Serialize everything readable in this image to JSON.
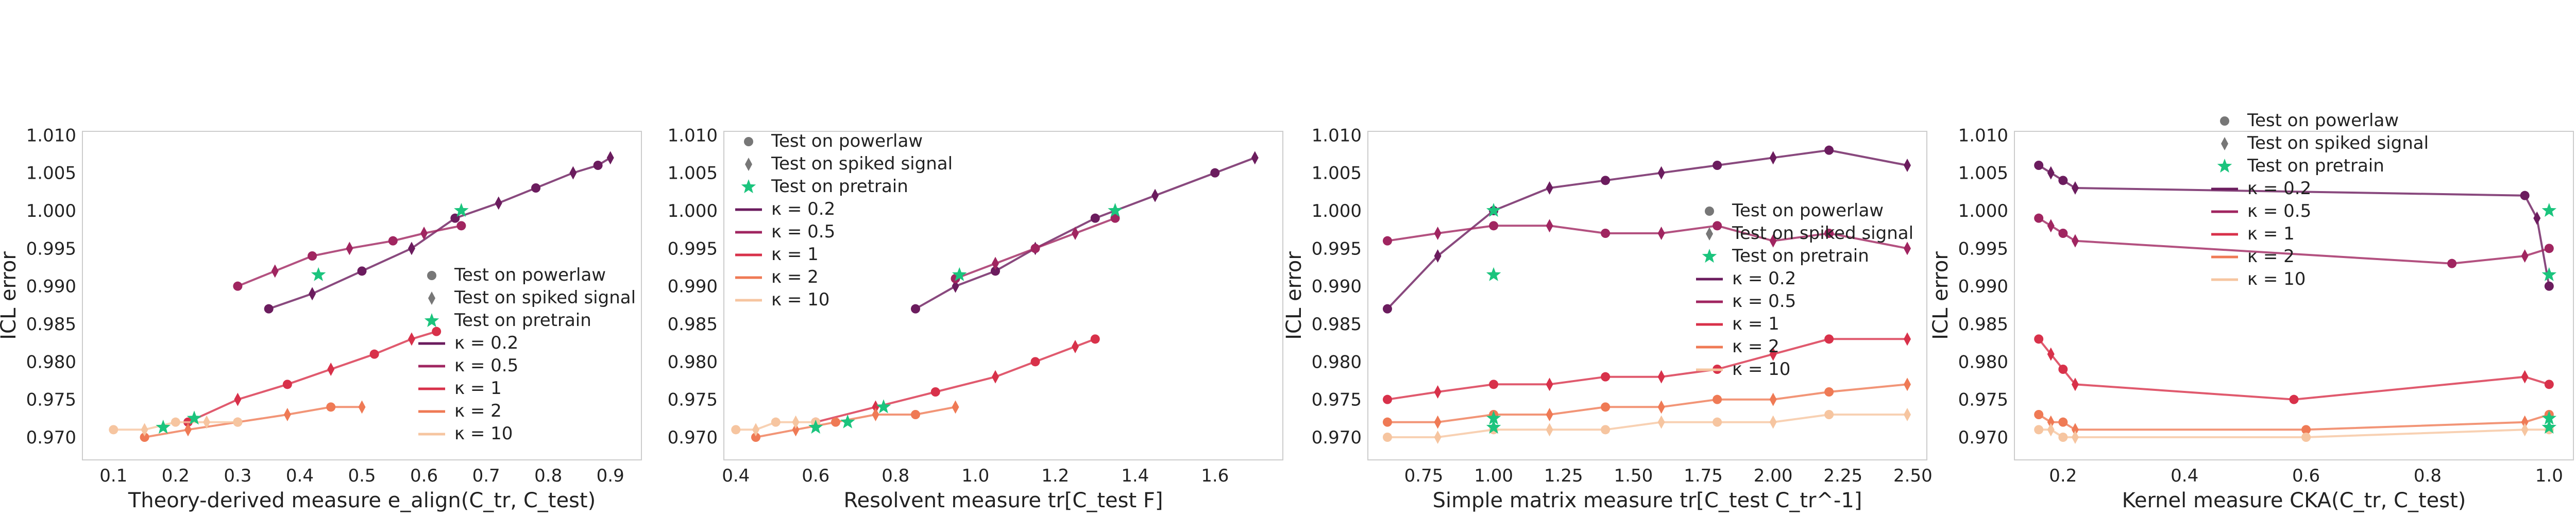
{
  "chart_data": [
    {
      "type": "scatter",
      "xlabel": "Theory-derived measure e_align(C_tr, C_test)",
      "ylabel": "ICL error",
      "xlim": [
        0.05,
        0.95
      ],
      "ylim": [
        0.967,
        1.0105
      ],
      "xticks": [
        "0.1",
        "0.2",
        "0.3",
        "0.4",
        "0.5",
        "0.6",
        "0.7",
        "0.8",
        "0.9"
      ],
      "yticks": [
        "0.970",
        "0.975",
        "0.980",
        "0.985",
        "0.990",
        "0.995",
        "1.000",
        "1.005",
        "1.010"
      ],
      "legend_position": "center-right",
      "legend": [
        "Test on powerlaw",
        "Test on spiked signal",
        "Test on pretrain",
        "κ = 0.2",
        "κ = 0.5",
        "κ = 1",
        "κ = 2",
        "κ = 10"
      ],
      "series": [
        {
          "name": "κ = 0.2",
          "color": "#6b1c5e",
          "x": [
            0.35,
            0.42,
            0.5,
            0.58,
            0.65,
            0.72,
            0.78,
            0.84,
            0.88,
            0.9
          ],
          "y": [
            0.987,
            0.989,
            0.992,
            0.995,
            0.999,
            1.001,
            1.003,
            1.005,
            1.006,
            1.007
          ]
        },
        {
          "name": "κ = 0.5",
          "color": "#a02560",
          "x": [
            0.3,
            0.36,
            0.42,
            0.48,
            0.55,
            0.6,
            0.66
          ],
          "y": [
            0.99,
            0.992,
            0.994,
            0.995,
            0.996,
            0.997,
            0.998
          ]
        },
        {
          "name": "κ = 1",
          "color": "#d8314a",
          "x": [
            0.22,
            0.3,
            0.38,
            0.45,
            0.52,
            0.58,
            0.62
          ],
          "y": [
            0.972,
            0.975,
            0.977,
            0.979,
            0.981,
            0.983,
            0.984
          ]
        },
        {
          "name": "κ = 2",
          "color": "#ef7a55",
          "x": [
            0.15,
            0.22,
            0.3,
            0.38,
            0.45,
            0.5
          ],
          "y": [
            0.97,
            0.971,
            0.972,
            0.973,
            0.974,
            0.974
          ]
        },
        {
          "name": "κ = 10",
          "color": "#f6c5a0",
          "x": [
            0.1,
            0.15,
            0.2,
            0.25,
            0.3
          ],
          "y": [
            0.971,
            0.971,
            0.972,
            0.972,
            0.972
          ]
        }
      ],
      "pretrain_x": [
        0.18,
        0.23,
        0.43,
        0.66
      ],
      "pretrain_y": [
        0.9713,
        0.9725,
        0.9915,
        1.0
      ]
    },
    {
      "type": "scatter",
      "xlabel": "Resolvent measure tr[C_test F]",
      "ylabel": "",
      "xlim": [
        0.37,
        1.77
      ],
      "ylim": [
        0.967,
        1.0105
      ],
      "xticks": [
        "0.4",
        "0.6",
        "0.8",
        "1.0",
        "1.2",
        "1.4",
        "1.6"
      ],
      "yticks": [
        "0.970",
        "0.975",
        "0.980",
        "0.985",
        "0.990",
        "0.995",
        "1.000",
        "1.005",
        "1.010"
      ],
      "legend_position": "upper-left",
      "legend": [
        "Test on powerlaw",
        "Test on spiked signal",
        "Test on pretrain",
        "κ = 0.2",
        "κ = 0.5",
        "κ = 1",
        "κ = 2",
        "κ = 10"
      ],
      "series": [
        {
          "name": "κ = 0.2",
          "color": "#6b1c5e",
          "x": [
            0.85,
            0.95,
            1.05,
            1.15,
            1.3,
            1.45,
            1.6,
            1.7
          ],
          "y": [
            0.987,
            0.99,
            0.992,
            0.995,
            0.999,
            1.002,
            1.005,
            1.007
          ]
        },
        {
          "name": "κ = 0.5",
          "color": "#a02560",
          "x": [
            0.95,
            1.05,
            1.15,
            1.25,
            1.35
          ],
          "y": [
            0.991,
            0.993,
            0.995,
            0.997,
            0.999
          ]
        },
        {
          "name": "κ = 1",
          "color": "#d8314a",
          "x": [
            0.6,
            0.75,
            0.9,
            1.05,
            1.15,
            1.25,
            1.3
          ],
          "y": [
            0.972,
            0.974,
            0.976,
            0.978,
            0.98,
            0.982,
            0.983
          ]
        },
        {
          "name": "κ = 2",
          "color": "#ef7a55",
          "x": [
            0.45,
            0.55,
            0.65,
            0.75,
            0.85,
            0.95
          ],
          "y": [
            0.97,
            0.971,
            0.972,
            0.973,
            0.973,
            0.974
          ]
        },
        {
          "name": "κ = 10",
          "color": "#f6c5a0",
          "x": [
            0.4,
            0.45,
            0.5,
            0.55,
            0.6
          ],
          "y": [
            0.971,
            0.971,
            0.972,
            0.972,
            0.972
          ]
        }
      ],
      "pretrain_x": [
        0.6,
        0.68,
        0.77,
        0.96,
        1.35
      ],
      "pretrain_y": [
        0.9713,
        0.972,
        0.974,
        0.9915,
        1.0
      ]
    },
    {
      "type": "scatter",
      "xlabel": "Simple matrix measure tr[C_test C_tr^-1]",
      "ylabel": "ICL error",
      "xlim": [
        0.55,
        2.55
      ],
      "ylim": [
        0.967,
        1.0105
      ],
      "xticks": [
        "0.75",
        "1.00",
        "1.25",
        "1.50",
        "1.75",
        "2.00",
        "2.25",
        "2.50"
      ],
      "yticks": [
        "0.970",
        "0.975",
        "0.980",
        "0.985",
        "0.990",
        "0.995",
        "1.000",
        "1.005",
        "1.010"
      ],
      "legend_position": "center",
      "legend": [
        "Test on powerlaw",
        "Test on spiked signal",
        "Test on pretrain",
        "κ = 0.2",
        "κ = 0.5",
        "κ = 1",
        "κ = 2",
        "κ = 10"
      ],
      "series": [
        {
          "name": "κ = 0.2",
          "color": "#6b1c5e",
          "x": [
            0.62,
            0.8,
            1.0,
            1.2,
            1.4,
            1.6,
            1.8,
            2.0,
            2.2,
            2.48
          ],
          "y": [
            0.987,
            0.994,
            1.0,
            1.003,
            1.004,
            1.005,
            1.006,
            1.007,
            1.008,
            1.006
          ]
        },
        {
          "name": "κ = 0.5",
          "color": "#a02560",
          "x": [
            0.62,
            0.8,
            1.0,
            1.2,
            1.4,
            1.6,
            1.8,
            2.0,
            2.2,
            2.48
          ],
          "y": [
            0.996,
            0.997,
            0.998,
            0.998,
            0.997,
            0.997,
            0.998,
            0.996,
            0.997,
            0.995
          ]
        },
        {
          "name": "κ = 1",
          "color": "#d8314a",
          "x": [
            0.62,
            0.8,
            1.0,
            1.2,
            1.4,
            1.6,
            1.8,
            2.0,
            2.2,
            2.48
          ],
          "y": [
            0.975,
            0.976,
            0.977,
            0.977,
            0.978,
            0.978,
            0.979,
            0.981,
            0.983,
            0.983
          ]
        },
        {
          "name": "κ = 2",
          "color": "#ef7a55",
          "x": [
            0.62,
            0.8,
            1.0,
            1.2,
            1.4,
            1.6,
            1.8,
            2.0,
            2.2,
            2.48
          ],
          "y": [
            0.972,
            0.972,
            0.973,
            0.973,
            0.974,
            0.974,
            0.975,
            0.975,
            0.976,
            0.977
          ]
        },
        {
          "name": "κ = 10",
          "color": "#f6c5a0",
          "x": [
            0.62,
            0.8,
            1.0,
            1.2,
            1.4,
            1.6,
            1.8,
            2.0,
            2.2,
            2.48
          ],
          "y": [
            0.97,
            0.97,
            0.971,
            0.971,
            0.971,
            0.972,
            0.972,
            0.972,
            0.973,
            0.973
          ]
        }
      ],
      "pretrain_x": [
        1.0,
        1.0,
        1.0,
        1.0
      ],
      "pretrain_y": [
        1.0,
        0.9915,
        0.9725,
        0.9713
      ]
    },
    {
      "type": "scatter",
      "xlabel": "Kernel measure CKA(C_tr, C_test)",
      "ylabel": "ICL error",
      "xlim": [
        0.12,
        1.04
      ],
      "ylim": [
        0.967,
        1.0105
      ],
      "xticks": [
        "0.2",
        "0.4",
        "0.6",
        "0.8",
        "1.0"
      ],
      "yticks": [
        "0.970",
        "0.975",
        "0.980",
        "0.985",
        "0.990",
        "0.995",
        "1.000",
        "1.005",
        "1.010"
      ],
      "legend_position": "upper-center",
      "legend": [
        "Test on powerlaw",
        "Test on spiked signal",
        "Test on pretrain",
        "κ = 0.2",
        "κ = 0.5",
        "κ = 1",
        "κ = 2",
        "κ = 10"
      ],
      "series": [
        {
          "name": "κ = 0.2",
          "color": "#6b1c5e",
          "x": [
            0.16,
            0.18,
            0.2,
            0.22,
            0.96,
            0.98,
            1.0
          ],
          "y": [
            1.006,
            1.005,
            1.004,
            1.003,
            1.002,
            0.999,
            0.99
          ]
        },
        {
          "name": "κ = 0.5",
          "color": "#a02560",
          "x": [
            0.16,
            0.18,
            0.2,
            0.22,
            0.84,
            0.96,
            1.0
          ],
          "y": [
            0.999,
            0.998,
            0.997,
            0.996,
            0.993,
            0.994,
            0.995
          ]
        },
        {
          "name": "κ = 1",
          "color": "#d8314a",
          "x": [
            0.16,
            0.18,
            0.2,
            0.22,
            0.58,
            0.96,
            1.0
          ],
          "y": [
            0.983,
            0.981,
            0.979,
            0.977,
            0.975,
            0.978,
            0.977
          ]
        },
        {
          "name": "κ = 2",
          "color": "#ef7a55",
          "x": [
            0.16,
            0.18,
            0.2,
            0.22,
            0.6,
            0.96,
            1.0
          ],
          "y": [
            0.973,
            0.972,
            0.972,
            0.971,
            0.971,
            0.972,
            0.973
          ]
        },
        {
          "name": "κ = 10",
          "color": "#f6c5a0",
          "x": [
            0.16,
            0.18,
            0.2,
            0.22,
            0.6,
            0.96,
            1.0
          ],
          "y": [
            0.971,
            0.971,
            0.97,
            0.97,
            0.97,
            0.971,
            0.971
          ]
        }
      ],
      "pretrain_x": [
        1.0,
        1.0,
        1.0,
        1.0
      ],
      "pretrain_y": [
        1.0,
        0.9915,
        0.9725,
        0.9713
      ]
    }
  ]
}
